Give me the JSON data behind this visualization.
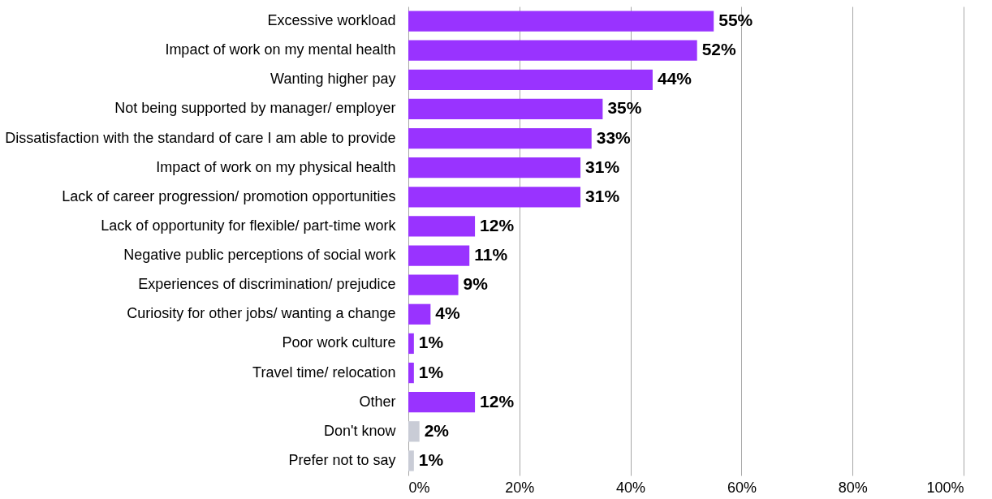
{
  "chart_data": {
    "type": "bar",
    "orientation": "horizontal",
    "categories": [
      "Excessive workload",
      "Impact of work on my mental health",
      "Wanting higher pay",
      "Not being supported by manager/ employer",
      "Dissatisfaction with the standard of care I am able to provide",
      "Impact of work on my physical health",
      "Lack of career progression/ promotion opportunities",
      "Lack of opportunity for flexible/ part-time work",
      "Negative public perceptions of social work",
      "Experiences of discrimination/ prejudice",
      "Curiosity for other jobs/ wanting a change",
      "Poor work culture",
      "Travel time/ relocation",
      "Other",
      "Don't know",
      "Prefer not to say"
    ],
    "values": [
      55,
      52,
      44,
      35,
      33,
      31,
      31,
      12,
      11,
      9,
      4,
      1,
      1,
      12,
      2,
      1
    ],
    "value_labels": [
      "55%",
      "52%",
      "44%",
      "35%",
      "33%",
      "31%",
      "31%",
      "12%",
      "11%",
      "9%",
      "4%",
      "1%",
      "1%",
      "12%",
      "2%",
      "1%"
    ],
    "colors": [
      "#9933ff",
      "#9933ff",
      "#9933ff",
      "#9933ff",
      "#9933ff",
      "#9933ff",
      "#9933ff",
      "#9933ff",
      "#9933ff",
      "#9933ff",
      "#9933ff",
      "#9933ff",
      "#9933ff",
      "#9933ff",
      "#c9ccd6",
      "#c9ccd6"
    ],
    "xlim": [
      0,
      100
    ],
    "xticks": [
      {
        "value": 0,
        "label": "0%"
      },
      {
        "value": 20,
        "label": "20%"
      },
      {
        "value": 40,
        "label": "40%"
      },
      {
        "value": 60,
        "label": "60%"
      },
      {
        "value": 80,
        "label": "80%"
      },
      {
        "value": 100,
        "label": "100%"
      }
    ],
    "grid": "x"
  }
}
